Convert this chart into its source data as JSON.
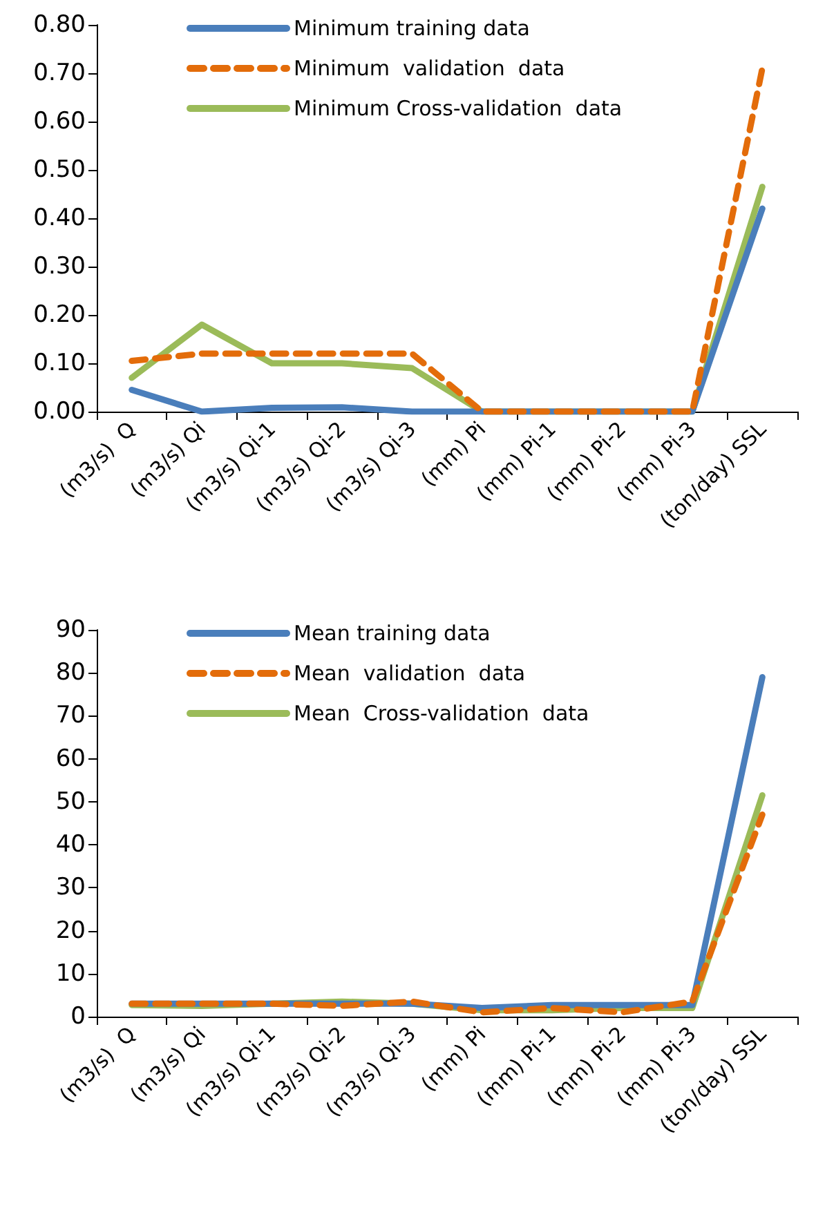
{
  "chart_data": [
    {
      "type": "line",
      "categories": [
        "(m3/s)  Q",
        "(m3/s) Qi",
        "(m3/s) Qi-1",
        "(m3/s) Qi-2",
        "(m3/s) Qi-3",
        "(mm) Pi",
        "(mm) Pi-1",
        "(mm) Pi-2",
        "(mm) Pi-3",
        "(ton/day) SSL"
      ],
      "series": [
        {
          "name": "Minimum training data",
          "color": "#4a7ebb",
          "line_style": "solid",
          "values": [
            0.045,
            0,
            0.008,
            0.009,
            0,
            0,
            0,
            0,
            0,
            0.42
          ]
        },
        {
          "name": "Minimum  validation  data",
          "color": "#e36c0a",
          "line_style": "dashed",
          "values": [
            0.105,
            0.12,
            0.12,
            0.12,
            0.12,
            0,
            0,
            0,
            0,
            0.71
          ]
        },
        {
          "name": "Minimum Cross-validation  data",
          "color": "#9bbb59",
          "line_style": "solid",
          "values": [
            0.07,
            0.18,
            0.1,
            0.1,
            0.09,
            0,
            0,
            0,
            0,
            0.465
          ]
        }
      ],
      "ylim": [
        0,
        0.8
      ],
      "yticks": [
        {
          "value": 0,
          "label": "0.00"
        },
        {
          "value": 0.1,
          "label": "0.10"
        },
        {
          "value": 0.2,
          "label": "0.20"
        },
        {
          "value": 0.3,
          "label": "0.30"
        },
        {
          "value": 0.4,
          "label": "0.40"
        },
        {
          "value": 0.5,
          "label": "0.50"
        },
        {
          "value": 0.6,
          "label": "0.60"
        },
        {
          "value": 0.7,
          "label": "0.70"
        },
        {
          "value": 0.8,
          "label": "0.80"
        }
      ],
      "grid": false,
      "legend": "top",
      "marker": "none"
    },
    {
      "type": "line",
      "categories": [
        "(m3/s)  Q",
        "(m3/s) Qi",
        "(m3/s) Qi-1",
        "(m3/s) Qi-2",
        "(m3/s) Qi-3",
        "(mm) Pi",
        "(mm) Pi-1",
        "(mm) Pi-2",
        "(mm) Pi-3",
        "(ton/day) SSL"
      ],
      "series": [
        {
          "name": "Mean training data",
          "color": "#4a7ebb",
          "line_style": "solid",
          "values": [
            3,
            3,
            3,
            3,
            3,
            2,
            2.7,
            2.7,
            2.7,
            79
          ]
        },
        {
          "name": "Mean  validation  data",
          "color": "#e36c0a",
          "line_style": "dashed",
          "values": [
            3,
            3,
            3,
            2.5,
            3.5,
            1,
            2,
            1,
            3.5,
            47
          ]
        },
        {
          "name": "Mean  Cross-validation  data",
          "color": "#9bbb59",
          "line_style": "solid",
          "values": [
            2.7,
            2.5,
            3,
            3.5,
            3,
            1.5,
            1.5,
            2,
            2,
            51.5
          ]
        }
      ],
      "ylim": [
        0,
        90
      ],
      "yticks": [
        0,
        10,
        20,
        30,
        40,
        50,
        60,
        70,
        80,
        90
      ],
      "grid": false,
      "legend": "top",
      "marker": "none"
    }
  ]
}
